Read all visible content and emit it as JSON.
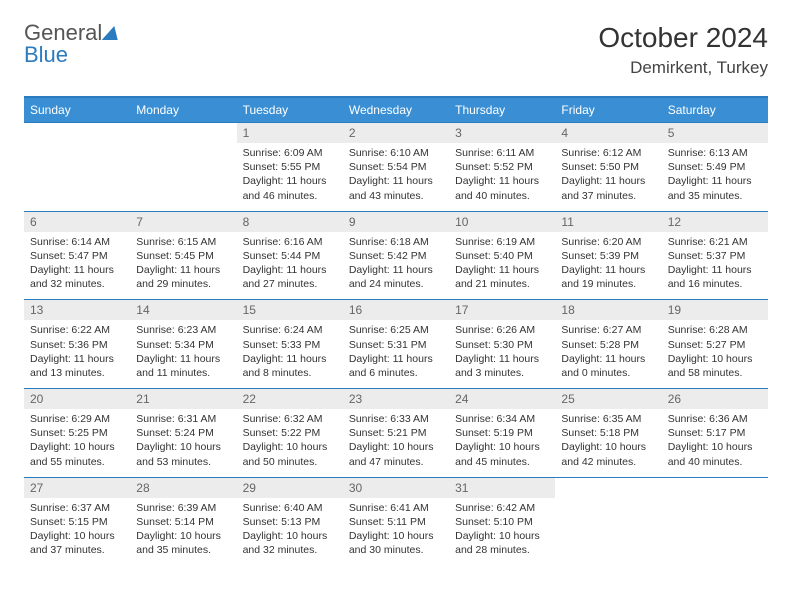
{
  "logo": {
    "word1": "General",
    "word2": "Blue"
  },
  "header": {
    "title": "October 2024",
    "location": "Demirkent, Turkey"
  },
  "style": {
    "accent": "#3a8fd4",
    "rule": "#2b7bbf",
    "daybg": "#ececec",
    "bodytext": "#333333",
    "title_fontsize": 28,
    "location_fontsize": 17,
    "cell_fontsize": 10.5,
    "header_fontsize": 12
  },
  "weekdays": [
    "Sunday",
    "Monday",
    "Tuesday",
    "Wednesday",
    "Thursday",
    "Friday",
    "Saturday"
  ],
  "weeks": [
    [
      null,
      null,
      {
        "day": "1",
        "sunrise": "Sunrise: 6:09 AM",
        "sunset": "Sunset: 5:55 PM",
        "daylight1": "Daylight: 11 hours",
        "daylight2": "and 46 minutes."
      },
      {
        "day": "2",
        "sunrise": "Sunrise: 6:10 AM",
        "sunset": "Sunset: 5:54 PM",
        "daylight1": "Daylight: 11 hours",
        "daylight2": "and 43 minutes."
      },
      {
        "day": "3",
        "sunrise": "Sunrise: 6:11 AM",
        "sunset": "Sunset: 5:52 PM",
        "daylight1": "Daylight: 11 hours",
        "daylight2": "and 40 minutes."
      },
      {
        "day": "4",
        "sunrise": "Sunrise: 6:12 AM",
        "sunset": "Sunset: 5:50 PM",
        "daylight1": "Daylight: 11 hours",
        "daylight2": "and 37 minutes."
      },
      {
        "day": "5",
        "sunrise": "Sunrise: 6:13 AM",
        "sunset": "Sunset: 5:49 PM",
        "daylight1": "Daylight: 11 hours",
        "daylight2": "and 35 minutes."
      }
    ],
    [
      {
        "day": "6",
        "sunrise": "Sunrise: 6:14 AM",
        "sunset": "Sunset: 5:47 PM",
        "daylight1": "Daylight: 11 hours",
        "daylight2": "and 32 minutes."
      },
      {
        "day": "7",
        "sunrise": "Sunrise: 6:15 AM",
        "sunset": "Sunset: 5:45 PM",
        "daylight1": "Daylight: 11 hours",
        "daylight2": "and 29 minutes."
      },
      {
        "day": "8",
        "sunrise": "Sunrise: 6:16 AM",
        "sunset": "Sunset: 5:44 PM",
        "daylight1": "Daylight: 11 hours",
        "daylight2": "and 27 minutes."
      },
      {
        "day": "9",
        "sunrise": "Sunrise: 6:18 AM",
        "sunset": "Sunset: 5:42 PM",
        "daylight1": "Daylight: 11 hours",
        "daylight2": "and 24 minutes."
      },
      {
        "day": "10",
        "sunrise": "Sunrise: 6:19 AM",
        "sunset": "Sunset: 5:40 PM",
        "daylight1": "Daylight: 11 hours",
        "daylight2": "and 21 minutes."
      },
      {
        "day": "11",
        "sunrise": "Sunrise: 6:20 AM",
        "sunset": "Sunset: 5:39 PM",
        "daylight1": "Daylight: 11 hours",
        "daylight2": "and 19 minutes."
      },
      {
        "day": "12",
        "sunrise": "Sunrise: 6:21 AM",
        "sunset": "Sunset: 5:37 PM",
        "daylight1": "Daylight: 11 hours",
        "daylight2": "and 16 minutes."
      }
    ],
    [
      {
        "day": "13",
        "sunrise": "Sunrise: 6:22 AM",
        "sunset": "Sunset: 5:36 PM",
        "daylight1": "Daylight: 11 hours",
        "daylight2": "and 13 minutes."
      },
      {
        "day": "14",
        "sunrise": "Sunrise: 6:23 AM",
        "sunset": "Sunset: 5:34 PM",
        "daylight1": "Daylight: 11 hours",
        "daylight2": "and 11 minutes."
      },
      {
        "day": "15",
        "sunrise": "Sunrise: 6:24 AM",
        "sunset": "Sunset: 5:33 PM",
        "daylight1": "Daylight: 11 hours",
        "daylight2": "and 8 minutes."
      },
      {
        "day": "16",
        "sunrise": "Sunrise: 6:25 AM",
        "sunset": "Sunset: 5:31 PM",
        "daylight1": "Daylight: 11 hours",
        "daylight2": "and 6 minutes."
      },
      {
        "day": "17",
        "sunrise": "Sunrise: 6:26 AM",
        "sunset": "Sunset: 5:30 PM",
        "daylight1": "Daylight: 11 hours",
        "daylight2": "and 3 minutes."
      },
      {
        "day": "18",
        "sunrise": "Sunrise: 6:27 AM",
        "sunset": "Sunset: 5:28 PM",
        "daylight1": "Daylight: 11 hours",
        "daylight2": "and 0 minutes."
      },
      {
        "day": "19",
        "sunrise": "Sunrise: 6:28 AM",
        "sunset": "Sunset: 5:27 PM",
        "daylight1": "Daylight: 10 hours",
        "daylight2": "and 58 minutes."
      }
    ],
    [
      {
        "day": "20",
        "sunrise": "Sunrise: 6:29 AM",
        "sunset": "Sunset: 5:25 PM",
        "daylight1": "Daylight: 10 hours",
        "daylight2": "and 55 minutes."
      },
      {
        "day": "21",
        "sunrise": "Sunrise: 6:31 AM",
        "sunset": "Sunset: 5:24 PM",
        "daylight1": "Daylight: 10 hours",
        "daylight2": "and 53 minutes."
      },
      {
        "day": "22",
        "sunrise": "Sunrise: 6:32 AM",
        "sunset": "Sunset: 5:22 PM",
        "daylight1": "Daylight: 10 hours",
        "daylight2": "and 50 minutes."
      },
      {
        "day": "23",
        "sunrise": "Sunrise: 6:33 AM",
        "sunset": "Sunset: 5:21 PM",
        "daylight1": "Daylight: 10 hours",
        "daylight2": "and 47 minutes."
      },
      {
        "day": "24",
        "sunrise": "Sunrise: 6:34 AM",
        "sunset": "Sunset: 5:19 PM",
        "daylight1": "Daylight: 10 hours",
        "daylight2": "and 45 minutes."
      },
      {
        "day": "25",
        "sunrise": "Sunrise: 6:35 AM",
        "sunset": "Sunset: 5:18 PM",
        "daylight1": "Daylight: 10 hours",
        "daylight2": "and 42 minutes."
      },
      {
        "day": "26",
        "sunrise": "Sunrise: 6:36 AM",
        "sunset": "Sunset: 5:17 PM",
        "daylight1": "Daylight: 10 hours",
        "daylight2": "and 40 minutes."
      }
    ],
    [
      {
        "day": "27",
        "sunrise": "Sunrise: 6:37 AM",
        "sunset": "Sunset: 5:15 PM",
        "daylight1": "Daylight: 10 hours",
        "daylight2": "and 37 minutes."
      },
      {
        "day": "28",
        "sunrise": "Sunrise: 6:39 AM",
        "sunset": "Sunset: 5:14 PM",
        "daylight1": "Daylight: 10 hours",
        "daylight2": "and 35 minutes."
      },
      {
        "day": "29",
        "sunrise": "Sunrise: 6:40 AM",
        "sunset": "Sunset: 5:13 PM",
        "daylight1": "Daylight: 10 hours",
        "daylight2": "and 32 minutes."
      },
      {
        "day": "30",
        "sunrise": "Sunrise: 6:41 AM",
        "sunset": "Sunset: 5:11 PM",
        "daylight1": "Daylight: 10 hours",
        "daylight2": "and 30 minutes."
      },
      {
        "day": "31",
        "sunrise": "Sunrise: 6:42 AM",
        "sunset": "Sunset: 5:10 PM",
        "daylight1": "Daylight: 10 hours",
        "daylight2": "and 28 minutes."
      },
      null,
      null
    ]
  ]
}
